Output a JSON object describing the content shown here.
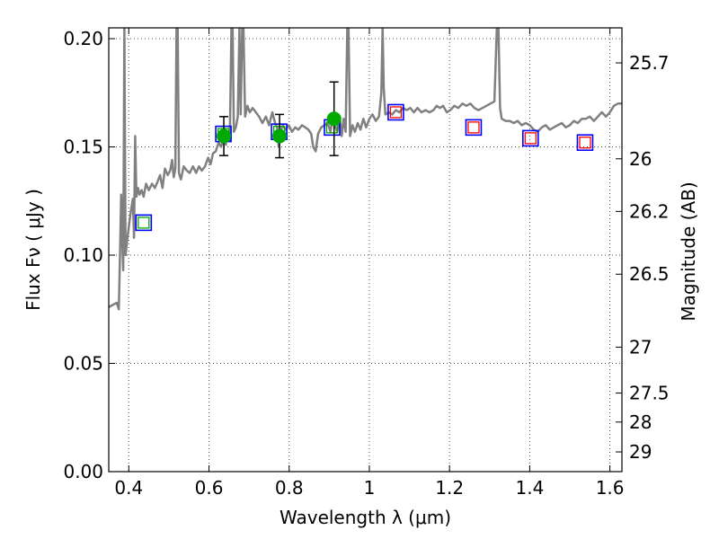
{
  "chart_data": {
    "type": "scatter",
    "xlabel": "Wavelength  λ (μm)",
    "ylabel": "Flux  Fν  ( μJy )",
    "ylabel_right": "Magnitude (AB)",
    "xlim": [
      0.35,
      1.63
    ],
    "ylim": [
      0.0,
      0.205
    ],
    "grid": true,
    "x_ticks": [
      {
        "value": 0.4,
        "label": "0.4"
      },
      {
        "value": 0.6,
        "label": "0.6"
      },
      {
        "value": 0.8,
        "label": "0.8"
      },
      {
        "value": 1.0,
        "label": "1"
      },
      {
        "value": 1.2,
        "label": "1.2"
      },
      {
        "value": 1.4,
        "label": "1.4"
      },
      {
        "value": 1.6,
        "label": "1.6"
      }
    ],
    "y_ticks": [
      {
        "value": 0.0,
        "label": "0.00"
      },
      {
        "value": 0.05,
        "label": "0.05"
      },
      {
        "value": 0.1,
        "label": "0.10"
      },
      {
        "value": 0.15,
        "label": "0.15"
      },
      {
        "value": 0.2,
        "label": "0.20"
      }
    ],
    "mag_ticks": [
      {
        "flux": 0.1888,
        "label": "25.7"
      },
      {
        "flux": 0.1445,
        "label": "26"
      },
      {
        "flux": 0.1202,
        "label": "26.2"
      },
      {
        "flux": 0.0912,
        "label": "26.5"
      },
      {
        "flux": 0.0575,
        "label": "27"
      },
      {
        "flux": 0.0363,
        "label": "27.5"
      },
      {
        "flux": 0.0229,
        "label": "28"
      },
      {
        "flux": 0.0091,
        "label": "29"
      }
    ],
    "series": [
      {
        "kind": "model_spectrum",
        "color": "#808080",
        "points": [
          [
            0.35,
            0.076
          ],
          [
            0.36,
            0.077
          ],
          [
            0.37,
            0.078
          ],
          [
            0.375,
            0.075
          ],
          [
            0.378,
            0.1
          ],
          [
            0.381,
            0.128
          ],
          [
            0.384,
            0.104
          ],
          [
            0.386,
            0.093
          ],
          [
            0.389,
            0.205
          ],
          [
            0.392,
            0.1
          ],
          [
            0.396,
            0.107
          ],
          [
            0.4,
            0.113
          ],
          [
            0.405,
            0.12
          ],
          [
            0.41,
            0.126
          ],
          [
            0.413,
            0.108
          ],
          [
            0.416,
            0.155
          ],
          [
            0.419,
            0.127
          ],
          [
            0.423,
            0.131
          ],
          [
            0.427,
            0.128
          ],
          [
            0.432,
            0.13
          ],
          [
            0.437,
            0.127
          ],
          [
            0.443,
            0.133
          ],
          [
            0.45,
            0.13
          ],
          [
            0.458,
            0.133
          ],
          [
            0.465,
            0.131
          ],
          [
            0.472,
            0.134
          ],
          [
            0.478,
            0.137
          ],
          [
            0.484,
            0.131
          ],
          [
            0.49,
            0.14
          ],
          [
            0.497,
            0.137
          ],
          [
            0.503,
            0.139
          ],
          [
            0.508,
            0.144
          ],
          [
            0.512,
            0.136
          ],
          [
            0.516,
            0.14
          ],
          [
            0.519,
            0.205
          ],
          [
            0.522,
            0.205
          ],
          [
            0.525,
            0.138
          ],
          [
            0.53,
            0.135
          ],
          [
            0.537,
            0.141
          ],
          [
            0.545,
            0.139
          ],
          [
            0.552,
            0.138
          ],
          [
            0.56,
            0.141
          ],
          [
            0.568,
            0.138
          ],
          [
            0.575,
            0.141
          ],
          [
            0.582,
            0.139
          ],
          [
            0.59,
            0.141
          ],
          [
            0.598,
            0.145
          ],
          [
            0.604,
            0.142
          ],
          [
            0.61,
            0.147
          ],
          [
            0.617,
            0.148
          ],
          [
            0.624,
            0.152
          ],
          [
            0.63,
            0.15
          ],
          [
            0.636,
            0.154
          ],
          [
            0.642,
            0.151
          ],
          [
            0.647,
            0.157
          ],
          [
            0.652,
            0.153
          ],
          [
            0.656,
            0.205
          ],
          [
            0.659,
            0.205
          ],
          [
            0.662,
            0.157
          ],
          [
            0.667,
            0.159
          ],
          [
            0.672,
            0.164
          ],
          [
            0.676,
            0.205
          ],
          [
            0.679,
            0.165
          ],
          [
            0.683,
            0.205
          ],
          [
            0.686,
            0.205
          ],
          [
            0.69,
            0.164
          ],
          [
            0.696,
            0.169
          ],
          [
            0.702,
            0.166
          ],
          [
            0.709,
            0.168
          ],
          [
            0.717,
            0.166
          ],
          [
            0.725,
            0.164
          ],
          [
            0.733,
            0.161
          ],
          [
            0.742,
            0.164
          ],
          [
            0.75,
            0.16
          ],
          [
            0.758,
            0.166
          ],
          [
            0.765,
            0.161
          ],
          [
            0.77,
            0.159
          ],
          [
            0.774,
            0.15
          ],
          [
            0.778,
            0.157
          ],
          [
            0.784,
            0.16
          ],
          [
            0.791,
            0.158
          ],
          [
            0.799,
            0.16
          ],
          [
            0.807,
            0.157
          ],
          [
            0.815,
            0.159
          ],
          [
            0.823,
            0.158
          ],
          [
            0.832,
            0.16
          ],
          [
            0.84,
            0.159
          ],
          [
            0.848,
            0.158
          ],
          [
            0.855,
            0.156
          ],
          [
            0.86,
            0.15
          ],
          [
            0.866,
            0.148
          ],
          [
            0.872,
            0.156
          ],
          [
            0.88,
            0.159
          ],
          [
            0.888,
            0.16
          ],
          [
            0.896,
            0.161
          ],
          [
            0.903,
            0.157
          ],
          [
            0.908,
            0.163
          ],
          [
            0.914,
            0.16
          ],
          [
            0.92,
            0.157
          ],
          [
            0.926,
            0.164
          ],
          [
            0.931,
            0.155
          ],
          [
            0.936,
            0.163
          ],
          [
            0.941,
            0.157
          ],
          [
            0.945,
            0.205
          ],
          [
            0.948,
            0.205
          ],
          [
            0.952,
            0.155
          ],
          [
            0.958,
            0.16
          ],
          [
            0.964,
            0.157
          ],
          [
            0.971,
            0.161
          ],
          [
            0.978,
            0.158
          ],
          [
            0.985,
            0.163
          ],
          [
            0.992,
            0.159
          ],
          [
            1.0,
            0.163
          ],
          [
            1.008,
            0.165
          ],
          [
            1.016,
            0.162
          ],
          [
            1.024,
            0.164
          ],
          [
            1.03,
            0.175
          ],
          [
            1.033,
            0.205
          ],
          [
            1.036,
            0.177
          ],
          [
            1.04,
            0.165
          ],
          [
            1.048,
            0.166
          ],
          [
            1.057,
            0.165
          ],
          [
            1.066,
            0.167
          ],
          [
            1.075,
            0.166
          ],
          [
            1.084,
            0.168
          ],
          [
            1.093,
            0.167
          ],
          [
            1.102,
            0.168
          ],
          [
            1.111,
            0.166
          ],
          [
            1.12,
            0.168
          ],
          [
            1.13,
            0.166
          ],
          [
            1.14,
            0.167
          ],
          [
            1.15,
            0.166
          ],
          [
            1.16,
            0.167
          ],
          [
            1.168,
            0.169
          ],
          [
            1.176,
            0.168
          ],
          [
            1.184,
            0.169
          ],
          [
            1.193,
            0.166
          ],
          [
            1.202,
            0.167
          ],
          [
            1.212,
            0.169
          ],
          [
            1.222,
            0.168
          ],
          [
            1.232,
            0.17
          ],
          [
            1.242,
            0.169
          ],
          [
            1.252,
            0.17
          ],
          [
            1.262,
            0.168
          ],
          [
            1.272,
            0.167
          ],
          [
            1.282,
            0.168
          ],
          [
            1.292,
            0.169
          ],
          [
            1.302,
            0.17
          ],
          [
            1.312,
            0.171
          ],
          [
            1.318,
            0.205
          ],
          [
            1.322,
            0.205
          ],
          [
            1.326,
            0.168
          ],
          [
            1.33,
            0.163
          ],
          [
            1.34,
            0.162
          ],
          [
            1.35,
            0.162
          ],
          [
            1.36,
            0.161
          ],
          [
            1.37,
            0.162
          ],
          [
            1.38,
            0.16
          ],
          [
            1.39,
            0.161
          ],
          [
            1.4,
            0.16
          ],
          [
            1.41,
            0.158
          ],
          [
            1.42,
            0.157
          ],
          [
            1.43,
            0.159
          ],
          [
            1.44,
            0.16
          ],
          [
            1.45,
            0.158
          ],
          [
            1.46,
            0.159
          ],
          [
            1.47,
            0.16
          ],
          [
            1.48,
            0.161
          ],
          [
            1.49,
            0.159
          ],
          [
            1.5,
            0.16
          ],
          [
            1.51,
            0.162
          ],
          [
            1.52,
            0.161
          ],
          [
            1.53,
            0.163
          ],
          [
            1.54,
            0.163
          ],
          [
            1.55,
            0.164
          ],
          [
            1.56,
            0.162
          ],
          [
            1.57,
            0.164
          ],
          [
            1.58,
            0.166
          ],
          [
            1.59,
            0.164
          ],
          [
            1.6,
            0.166
          ],
          [
            1.61,
            0.169
          ],
          [
            1.62,
            0.17
          ],
          [
            1.63,
            0.17
          ]
        ]
      },
      {
        "kind": "observed_photometry",
        "marker": "circle",
        "color": "#00aa00",
        "points": [
          {
            "x": 0.637,
            "y": 0.155,
            "yerr": 0.009
          },
          {
            "x": 0.776,
            "y": 0.155,
            "yerr": 0.01
          },
          {
            "x": 0.912,
            "y": 0.163,
            "yerr": 0.017
          }
        ]
      },
      {
        "kind": "model_photometry_blue",
        "marker": "square",
        "color": "#0000ff",
        "points": [
          [
            0.437,
            0.115
          ],
          [
            0.636,
            0.156
          ],
          [
            0.775,
            0.157
          ],
          [
            0.907,
            0.159
          ],
          [
            1.066,
            0.166
          ],
          [
            1.26,
            0.159
          ],
          [
            1.402,
            0.154
          ],
          [
            1.538,
            0.152
          ]
        ]
      },
      {
        "kind": "model_photometry_inner",
        "marker": "square",
        "points": [
          {
            "x": 0.437,
            "y": 0.115,
            "color": "#00aa00"
          },
          {
            "x": 0.636,
            "y": 0.156,
            "color": "#00aa00"
          },
          {
            "x": 0.775,
            "y": 0.157,
            "color": "#00aa00"
          },
          {
            "x": 0.907,
            "y": 0.159,
            "color": "#00aa00"
          },
          {
            "x": 1.066,
            "y": 0.166,
            "color": "#ff0000"
          },
          {
            "x": 1.26,
            "y": 0.159,
            "color": "#ff0000"
          },
          {
            "x": 1.402,
            "y": 0.154,
            "color": "#ff0000"
          },
          {
            "x": 1.538,
            "y": 0.152,
            "color": "#ff0000"
          }
        ]
      }
    ]
  }
}
